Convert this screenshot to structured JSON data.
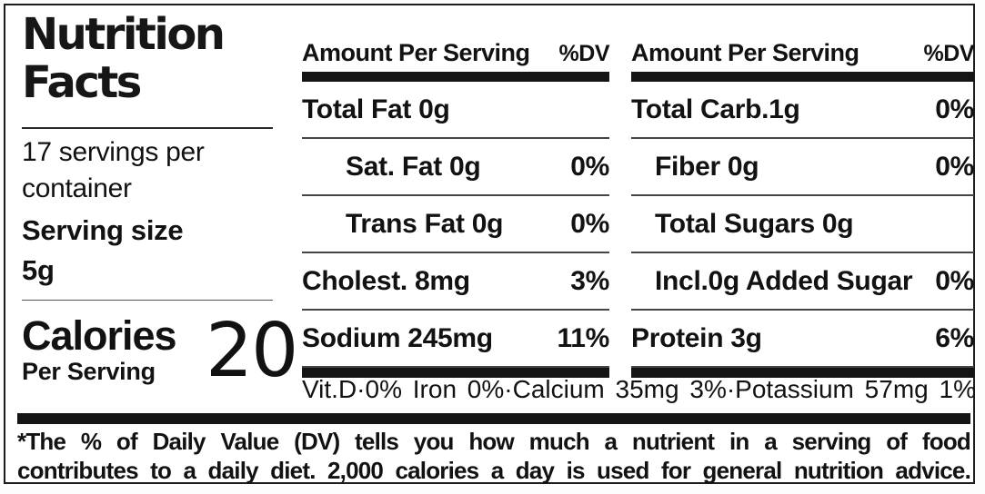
{
  "nutrition_label": {
    "title": "Nutrition Facts",
    "servings_per_container": "17 servings per container",
    "serving_size": {
      "label": "Serving size",
      "value": "5g"
    },
    "calories": {
      "label": "Calories",
      "sublabel": "Per Serving",
      "value": "20"
    },
    "columns": [
      {
        "header": {
          "amount": "Amount Per Serving",
          "dv": "%DV"
        },
        "rows": [
          {
            "name": "Total Fat 0g",
            "dv": ""
          },
          {
            "name": "Sat. Fat 0g",
            "dv": "0%"
          },
          {
            "name": "Trans Fat 0g",
            "dv": "0%"
          },
          {
            "name": "Cholest. 8mg",
            "dv": "3%"
          },
          {
            "name": "Sodium 245mg",
            "dv": "11%"
          }
        ]
      },
      {
        "header": {
          "amount": "Amount Per Serving",
          "dv": "%DV"
        },
        "rows": [
          {
            "name": "Total Carb.1g",
            "dv": "0%"
          },
          {
            "name": "Fiber 0g",
            "dv": "0%"
          },
          {
            "name": "Total Sugars 0g",
            "dv": ""
          },
          {
            "name": "Incl.0g Added Sugar",
            "dv": "0%"
          },
          {
            "name": "Protein 3g",
            "dv": "6%"
          }
        ]
      }
    ],
    "micronutrients": "Vit.D·0% Iron 0%·Calcium 35mg 3%·Potassium 57mg 1%",
    "footnote": {
      "line1": "*The % of Daily Value (DV) tells you how much a nutrient in a serving of food",
      "line2": "contributes to a daily diet. 2,000 calories a day is used for general nutrition advice."
    },
    "colors": {
      "text": "#121212",
      "background": "#ffffff"
    }
  }
}
